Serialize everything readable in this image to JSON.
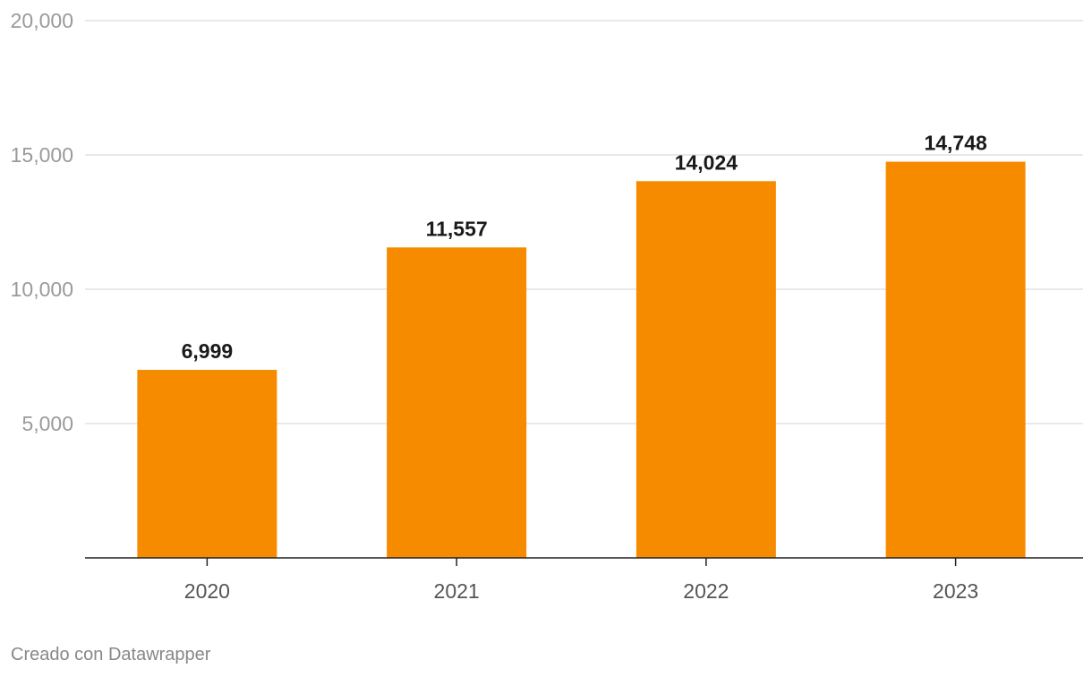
{
  "chart_data": {
    "type": "bar",
    "title": "",
    "xlabel": "",
    "ylabel": "",
    "categories": [
      "2020",
      "2021",
      "2022",
      "2023"
    ],
    "values": [
      6999,
      11557,
      14024,
      14748
    ],
    "value_labels": [
      "6,999",
      "11,557",
      "14,024",
      "14,748"
    ],
    "ylim": [
      0,
      20000
    ],
    "yticks": [
      5000,
      10000,
      15000,
      20000
    ],
    "ytick_labels": [
      "5,000",
      "10,000",
      "15,000",
      "20,000"
    ],
    "grid": true,
    "bar_color": "#f78b00"
  },
  "footer": {
    "credit": "Creado con Datawrapper"
  }
}
